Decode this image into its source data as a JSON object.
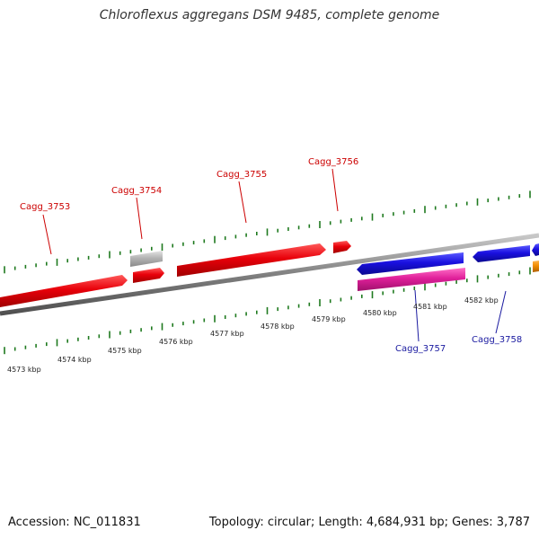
{
  "title": "Chloroflexus aggregans DSM 9485, complete genome",
  "footer": {
    "accession": "Accession: NC_011831",
    "summary": "Topology: circular; Length: 4,684,931 bp; Genes: 3,787"
  },
  "colors": {
    "forward_gene": "#e8000a",
    "reverse_gene": "#1a10e0",
    "pink_gene": "#e0209a",
    "grey_gene": "#b4b4b4",
    "orange_gene": "#f08c00",
    "backbone": "#808080",
    "tick": "#1f7a1f",
    "forward_label": "#cc0000",
    "reverse_label": "#1a1aa0"
  },
  "scale_labels": [
    "4573 kbp",
    "4574 kbp",
    "4575 kbp",
    "4576 kbp",
    "4577 kbp",
    "4578 kbp",
    "4579 kbp",
    "4580 kbp",
    "4581 kbp",
    "4582 kbp"
  ],
  "gene_labels": {
    "forward": [
      "Cagg_3753",
      "Cagg_3754",
      "Cagg_3755",
      "Cagg_3756"
    ],
    "reverse": [
      "Cagg_3757",
      "Cagg_3758"
    ]
  }
}
